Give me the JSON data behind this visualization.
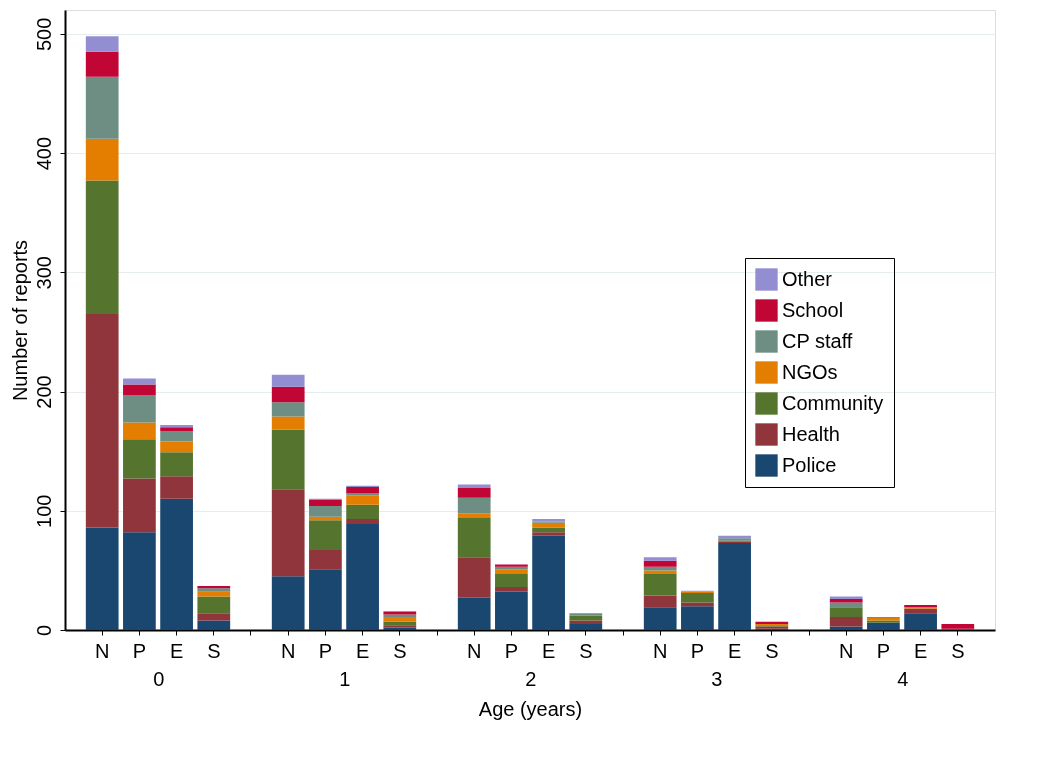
{
  "chart_data": {
    "type": "bar",
    "stacked": true,
    "xlabel": "Age (years)",
    "ylabel": "Number of reports",
    "categories": [
      "N",
      "P",
      "E",
      "S",
      null,
      "N",
      "P",
      "E",
      "S",
      null,
      "N",
      "P",
      "E",
      "S",
      null,
      "N",
      "P",
      "E",
      "S",
      null,
      "N",
      "P",
      "E",
      "S"
    ],
    "annotations": [
      "0",
      "1",
      "2",
      "3",
      "4"
    ],
    "series": [
      {
        "name": "Police",
        "color": "#1a476f",
        "values": [
          86,
          82,
          110,
          8,
          null,
          45,
          51,
          89,
          2,
          null,
          27,
          32,
          79,
          5,
          null,
          19,
          20,
          73,
          1,
          null,
          3,
          6,
          14,
          0
        ]
      },
      {
        "name": "Health",
        "color": "#90353b",
        "values": [
          179,
          45,
          19,
          6,
          null,
          73,
          16,
          4,
          2,
          null,
          34,
          4,
          3,
          3,
          null,
          10,
          3,
          1,
          2,
          null,
          8,
          0,
          4,
          1
        ]
      },
      {
        "name": "Community",
        "color": "#55752f",
        "values": [
          112,
          33,
          20,
          14,
          null,
          50,
          25,
          12,
          3,
          null,
          33,
          11,
          4,
          4,
          null,
          18,
          8,
          1,
          1,
          null,
          8,
          2,
          0,
          0
        ]
      },
      {
        "name": "NGOs",
        "color": "#e37e00",
        "values": [
          35,
          14,
          9,
          4,
          null,
          11,
          3,
          8,
          4,
          null,
          4,
          4,
          4,
          0,
          null,
          3,
          1,
          0,
          1,
          null,
          0,
          2,
          1,
          0
        ]
      },
      {
        "name": "CP staff",
        "color": "#6e8e84",
        "values": [
          52,
          23,
          9,
          3,
          null,
          12,
          9,
          2,
          2,
          null,
          13,
          2,
          1,
          2,
          null,
          3,
          0,
          2,
          0,
          null,
          4,
          1,
          0,
          0
        ]
      },
      {
        "name": "School",
        "color": "#c10534",
        "values": [
          21,
          9,
          3,
          2,
          null,
          13,
          5,
          5,
          2,
          null,
          8,
          2,
          0,
          0,
          null,
          5,
          0,
          0,
          2,
          null,
          3,
          0,
          2,
          4
        ]
      },
      {
        "name": "Other",
        "color": "#938dd2",
        "values": [
          13,
          5,
          2,
          0,
          null,
          10,
          1,
          1,
          1,
          null,
          3,
          0,
          2,
          0,
          null,
          3,
          1,
          2,
          0,
          null,
          2,
          0,
          0,
          0
        ]
      }
    ],
    "ylim": [
      0,
      520
    ],
    "yticks": [
      0,
      100,
      200,
      300,
      400,
      500
    ],
    "grid": "y",
    "legend": "right"
  }
}
